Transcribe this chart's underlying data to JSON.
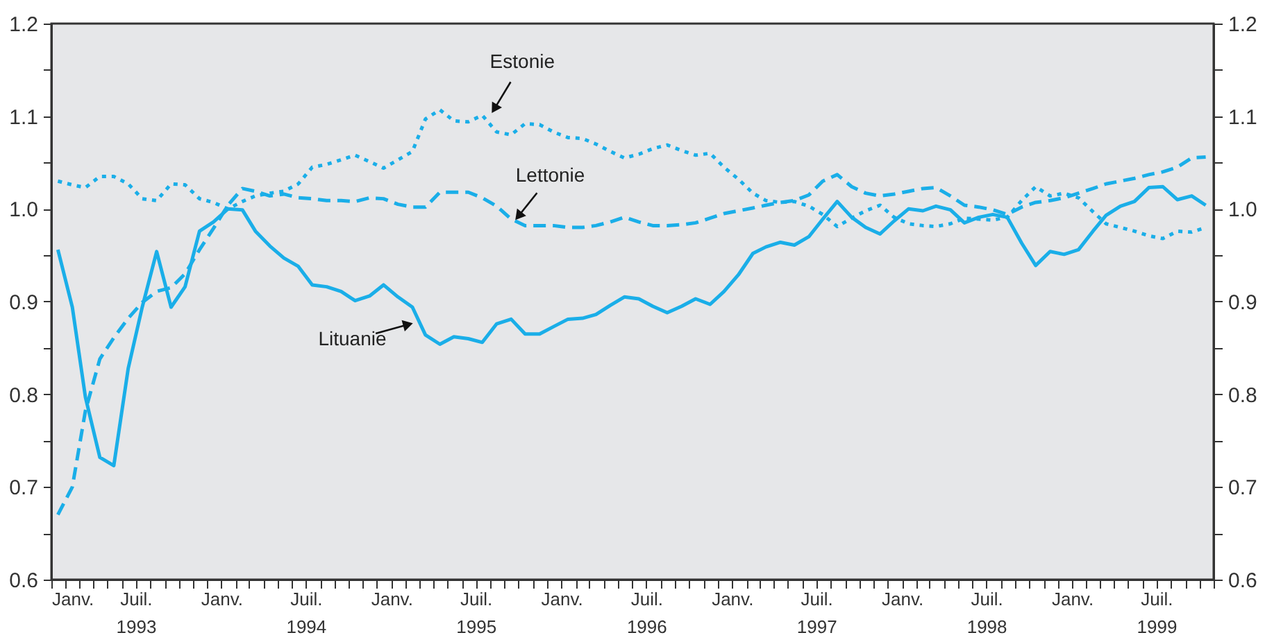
{
  "chart_data": {
    "type": "line",
    "x": [
      "1993-01-15",
      "1993-02-15",
      "1993-03-15",
      "1993-04-15",
      "1993-05-15",
      "1993-06-15",
      "1993-07-15",
      "1993-08-15",
      "1993-09-15",
      "1993-10-15",
      "1993-11-15",
      "1993-12-15",
      "1994-01-15",
      "1994-02-15",
      "1994-03-15",
      "1994-04-15",
      "1994-05-15",
      "1994-06-15",
      "1994-07-15",
      "1994-08-15",
      "1994-09-15",
      "1994-10-15",
      "1994-11-15",
      "1994-12-15",
      "1995-01-15",
      "1995-02-15",
      "1995-03-15",
      "1995-04-15",
      "1995-05-15",
      "1995-06-15",
      "1995-07-15",
      "1995-08-15",
      "1995-09-15",
      "1995-10-15",
      "1995-11-15",
      "1995-12-15",
      "1996-01-15",
      "1996-02-15",
      "1996-03-15",
      "1996-04-15",
      "1996-05-15",
      "1996-06-15",
      "1996-07-15",
      "1996-08-15",
      "1996-09-15",
      "1996-10-15",
      "1996-11-15",
      "1996-12-15",
      "1997-01-15",
      "1997-02-15",
      "1997-03-15",
      "1997-04-15",
      "1997-05-15",
      "1997-06-15",
      "1997-07-15",
      "1997-08-15",
      "1997-09-15",
      "1997-10-15",
      "1997-11-15",
      "1997-12-15",
      "1998-01-15",
      "1998-02-15",
      "1998-03-15",
      "1998-04-15",
      "1998-05-15",
      "1998-06-15",
      "1998-07-15",
      "1998-08-15",
      "1998-09-15",
      "1998-10-15",
      "1998-11-15",
      "1998-12-15",
      "1999-01-15",
      "1999-02-15",
      "1999-03-15",
      "1999-04-15",
      "1999-05-15",
      "1999-06-15",
      "1999-07-15",
      "1999-08-15",
      "1999-09-15",
      "1999-10-15"
    ],
    "series": [
      {
        "color": "#1aaee8",
        "line_style": "dotted",
        "values": [
          1.03,
          1.026,
          1.023,
          1.035,
          1.035,
          1.027,
          1.011,
          1.009,
          1.027,
          1.026,
          1.011,
          1.007,
          1.0,
          1.008,
          1.014,
          1.017,
          1.019,
          1.027,
          1.045,
          1.048,
          1.053,
          1.058,
          1.051,
          1.044,
          1.053,
          1.062,
          1.097,
          1.107,
          1.095,
          1.094,
          1.101,
          1.083,
          1.08,
          1.092,
          1.091,
          1.083,
          1.077,
          1.076,
          1.07,
          1.062,
          1.055,
          1.059,
          1.065,
          1.069,
          1.063,
          1.058,
          1.06,
          1.045,
          1.032,
          1.017,
          1.009,
          1.007,
          1.008,
          1.003,
          0.994,
          0.981,
          0.99,
          0.998,
          1.004,
          0.991,
          0.984,
          0.982,
          0.981,
          0.984,
          0.99,
          0.989,
          0.988,
          0.991,
          1.009,
          1.024,
          1.014,
          1.017,
          1.012,
          0.997,
          0.984,
          0.98,
          0.976,
          0.971,
          0.968,
          0.976,
          0.975,
          0.98
        ]
      },
      {
        "color": "#1aaee8",
        "line_style": "dashed",
        "values": [
          0.67,
          0.7,
          0.782,
          0.838,
          0.861,
          0.882,
          0.899,
          0.911,
          0.915,
          0.93,
          0.956,
          0.979,
          1.004,
          1.022,
          1.019,
          1.014,
          1.016,
          1.012,
          1.011,
          1.009,
          1.009,
          1.008,
          1.012,
          1.011,
          1.005,
          1.002,
          1.002,
          1.018,
          1.018,
          1.018,
          1.012,
          1.003,
          0.989,
          0.982,
          0.982,
          0.982,
          0.98,
          0.98,
          0.982,
          0.986,
          0.991,
          0.986,
          0.982,
          0.982,
          0.983,
          0.985,
          0.99,
          0.995,
          0.998,
          1.001,
          1.004,
          1.007,
          1.009,
          1.015,
          1.03,
          1.037,
          1.024,
          1.017,
          1.014,
          1.016,
          1.019,
          1.022,
          1.023,
          1.014,
          1.004,
          1.002,
          0.999,
          0.994,
          1.002,
          1.007,
          1.009,
          1.012,
          1.017,
          1.022,
          1.027,
          1.03,
          1.033,
          1.037,
          1.04,
          1.045,
          1.055,
          1.056
        ]
      },
      {
        "color": "#1aaee8",
        "line_style": "solid",
        "values": [
          0.956,
          0.894,
          0.797,
          0.732,
          0.723,
          0.828,
          0.894,
          0.954,
          0.894,
          0.916,
          0.976,
          0.986,
          1.0,
          0.999,
          0.976,
          0.96,
          0.947,
          0.938,
          0.918,
          0.916,
          0.911,
          0.901,
          0.906,
          0.918,
          0.905,
          0.894,
          0.864,
          0.854,
          0.862,
          0.86,
          0.856,
          0.876,
          0.881,
          0.865,
          0.865,
          0.873,
          0.881,
          0.882,
          0.886,
          0.896,
          0.905,
          0.903,
          0.895,
          0.888,
          0.895,
          0.903,
          0.897,
          0.911,
          0.929,
          0.952,
          0.959,
          0.964,
          0.961,
          0.97,
          0.989,
          1.008,
          0.991,
          0.98,
          0.973,
          0.987,
          1.0,
          0.998,
          1.003,
          0.999,
          0.985,
          0.991,
          0.994,
          0.991,
          0.963,
          0.939,
          0.954,
          0.951,
          0.956,
          0.976,
          0.993,
          1.003,
          1.008,
          1.023,
          1.024,
          1.01,
          1.014,
          1.004
        ]
      }
    ],
    "annotations": [
      {
        "text": "Estonie",
        "x": "1995-08-04",
        "y": 1.103
      },
      {
        "text": "Lettonie",
        "x": "1995-09-24",
        "y": 0.988
      },
      {
        "text": "Lituanie",
        "x": "1995-02-18",
        "y": 0.877
      }
    ],
    "xlim": [
      "1993-01",
      "1999-11"
    ],
    "xticks": [
      {
        "value": "1993-01",
        "label": "Janv."
      },
      {
        "value": "1993-02",
        "label": null
      },
      {
        "value": "1993-03",
        "label": null
      },
      {
        "value": "1993-04",
        "label": null
      },
      {
        "value": "1993-05",
        "label": null
      },
      {
        "value": "1993-06",
        "label": null
      },
      {
        "value": "1993-07",
        "label": "Juil.\n1993"
      },
      {
        "value": "1993-08",
        "label": null
      },
      {
        "value": "1993-09",
        "label": null
      },
      {
        "value": "1993-10",
        "label": null
      },
      {
        "value": "1993-11",
        "label": null
      },
      {
        "value": "1993-12",
        "label": null
      },
      {
        "value": "1994-01",
        "label": "Janv."
      },
      {
        "value": "1994-02",
        "label": null
      },
      {
        "value": "1994-03",
        "label": null
      },
      {
        "value": "1994-04",
        "label": null
      },
      {
        "value": "1994-05",
        "label": null
      },
      {
        "value": "1994-06",
        "label": null
      },
      {
        "value": "1994-07",
        "label": "Juil.\n1994"
      },
      {
        "value": "1994-08",
        "label": null
      },
      {
        "value": "1994-09",
        "label": null
      },
      {
        "value": "1994-10",
        "label": null
      },
      {
        "value": "1994-11",
        "label": null
      },
      {
        "value": "1994-12",
        "label": null
      },
      {
        "value": "1995-01",
        "label": "Janv."
      },
      {
        "value": "1995-02",
        "label": null
      },
      {
        "value": "1995-03",
        "label": null
      },
      {
        "value": "1995-04",
        "label": null
      },
      {
        "value": "1995-05",
        "label": null
      },
      {
        "value": "1995-06",
        "label": null
      },
      {
        "value": "1995-07",
        "label": "Juil.\n1995"
      },
      {
        "value": "1995-08",
        "label": null
      },
      {
        "value": "1995-09",
        "label": null
      },
      {
        "value": "1995-10",
        "label": null
      },
      {
        "value": "1995-11",
        "label": null
      },
      {
        "value": "1995-12",
        "label": null
      },
      {
        "value": "1996-01",
        "label": "Janv."
      },
      {
        "value": "1996-02",
        "label": null
      },
      {
        "value": "1996-03",
        "label": null
      },
      {
        "value": "1996-04",
        "label": null
      },
      {
        "value": "1996-05",
        "label": null
      },
      {
        "value": "1996-06",
        "label": null
      },
      {
        "value": "1996-07",
        "label": "Juil.\n1996"
      },
      {
        "value": "1996-08",
        "label": null
      },
      {
        "value": "1996-09",
        "label": null
      },
      {
        "value": "1996-10",
        "label": null
      },
      {
        "value": "1996-11",
        "label": null
      },
      {
        "value": "1996-12",
        "label": null
      },
      {
        "value": "1997-01",
        "label": "Janv."
      },
      {
        "value": "1997-02",
        "label": null
      },
      {
        "value": "1997-03",
        "label": null
      },
      {
        "value": "1997-04",
        "label": null
      },
      {
        "value": "1997-05",
        "label": null
      },
      {
        "value": "1997-06",
        "label": null
      },
      {
        "value": "1997-07",
        "label": "Juil.\n1997"
      },
      {
        "value": "1997-08",
        "label": null
      },
      {
        "value": "1997-09",
        "label": null
      },
      {
        "value": "1997-10",
        "label": null
      },
      {
        "value": "1997-11",
        "label": null
      },
      {
        "value": "1997-12",
        "label": null
      },
      {
        "value": "1998-01",
        "label": "Janv."
      },
      {
        "value": "1998-02",
        "label": null
      },
      {
        "value": "1998-03",
        "label": null
      },
      {
        "value": "1998-04",
        "label": null
      },
      {
        "value": "1998-05",
        "label": null
      },
      {
        "value": "1998-06",
        "label": null
      },
      {
        "value": "1998-07",
        "label": "Juil.\n1998"
      },
      {
        "value": "1998-08",
        "label": null
      },
      {
        "value": "1998-09",
        "label": null
      },
      {
        "value": "1998-10",
        "label": null
      },
      {
        "value": "1998-11",
        "label": null
      },
      {
        "value": "1998-12",
        "label": null
      },
      {
        "value": "1999-01",
        "label": "Janv."
      },
      {
        "value": "1999-02",
        "label": null
      },
      {
        "value": "1999-03",
        "label": null
      },
      {
        "value": "1999-04",
        "label": null
      },
      {
        "value": "1999-05",
        "label": null
      },
      {
        "value": "1999-06",
        "label": null
      },
      {
        "value": "1999-07",
        "label": "Juil.\n1999"
      },
      {
        "value": "1999-08",
        "label": null
      },
      {
        "value": "1999-09",
        "label": null
      },
      {
        "value": "1999-10",
        "label": null
      },
      {
        "value": "1999-11",
        "label": null
      }
    ],
    "ylim": [
      0.6,
      1.2
    ],
    "yticks": [
      {
        "value": 0.6,
        "label": "0.6"
      },
      {
        "value": 0.65,
        "label": null
      },
      {
        "value": 0.7,
        "label": "0.7"
      },
      {
        "value": 0.75,
        "label": null
      },
      {
        "value": 0.8,
        "label": "0.8"
      },
      {
        "value": 0.85,
        "label": null
      },
      {
        "value": 0.9,
        "label": "0.9"
      },
      {
        "value": 0.95,
        "label": null
      },
      {
        "value": 1.0,
        "label": "1.0"
      },
      {
        "value": 1.05,
        "label": null
      },
      {
        "value": 1.1,
        "label": "1.1"
      },
      {
        "value": 1.15,
        "label": null
      },
      {
        "value": 1.2,
        "label": "1.2"
      }
    ],
    "y2lim": [
      0.6,
      1.2
    ],
    "y2ticks": [
      {
        "value": 0.6,
        "label": "0.6"
      },
      {
        "value": 0.65,
        "label": null
      },
      {
        "value": 0.7,
        "label": "0.7"
      },
      {
        "value": 0.75,
        "label": null
      },
      {
        "value": 0.8,
        "label": "0.8"
      },
      {
        "value": 0.85,
        "label": null
      },
      {
        "value": 0.9,
        "label": "0.9"
      },
      {
        "value": 0.95,
        "label": null
      },
      {
        "value": 1.0,
        "label": "1.0"
      },
      {
        "value": 1.05,
        "label": null
      },
      {
        "value": 1.1,
        "label": "1.1"
      },
      {
        "value": 1.15,
        "label": null
      },
      {
        "value": 1.2,
        "label": "1.2"
      }
    ],
    "grid": false
  }
}
